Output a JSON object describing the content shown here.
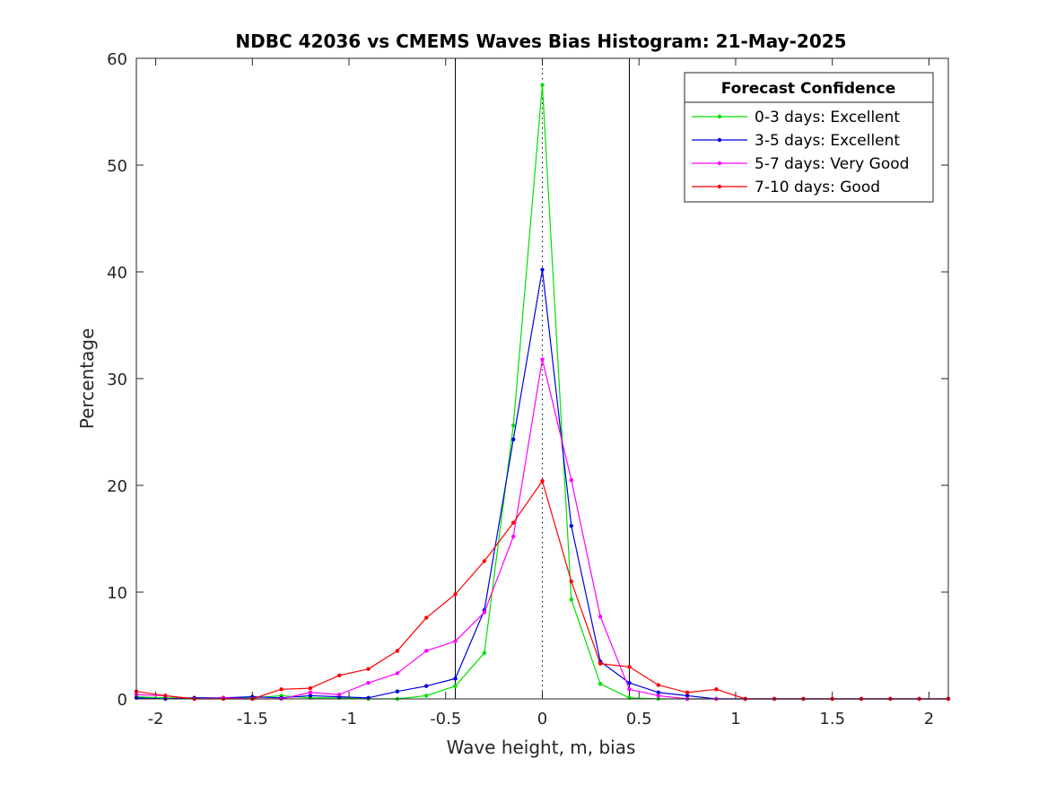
{
  "chart_data": {
    "type": "line",
    "title": "NDBC 42036 vs CMEMS Waves Bias Histogram: 21-May-2025",
    "xlabel": "Wave height, m, bias",
    "ylabel": "Percentage",
    "xlim": [
      -2.1,
      2.1
    ],
    "ylim": [
      0,
      60
    ],
    "xticks": [
      -2,
      -1.5,
      -1,
      -0.5,
      0,
      0.5,
      1,
      1.5,
      2
    ],
    "xtick_labels": [
      "-2",
      "-1.5",
      "-1",
      "-0.5",
      "0",
      "0.5",
      "1",
      "1.5",
      "2"
    ],
    "yticks": [
      0,
      10,
      20,
      30,
      40,
      50,
      60
    ],
    "ytick_labels": [
      "0",
      "10",
      "20",
      "30",
      "40",
      "50",
      "60"
    ],
    "grid": false,
    "reference_lines": {
      "solid": [
        -0.45,
        0.45
      ],
      "dotted": [
        0
      ]
    },
    "legend": {
      "title": "Forecast Confidence",
      "location": "top-right"
    },
    "x": [
      -2.1,
      -1.95,
      -1.8,
      -1.65,
      -1.5,
      -1.35,
      -1.2,
      -1.05,
      -0.9,
      -0.75,
      -0.6,
      -0.45,
      -0.3,
      -0.15,
      0,
      0.15,
      0.3,
      0.45,
      0.6,
      0.75,
      0.9,
      1.05,
      1.2,
      1.35,
      1.5,
      1.65,
      1.8,
      1.95,
      2.1
    ],
    "series": [
      {
        "name": "0-3 days: Excellent",
        "color": "#00e000",
        "values": [
          0.2,
          0.1,
          0.1,
          0.1,
          0.1,
          0.3,
          0.1,
          0.1,
          0,
          0,
          0.3,
          1.2,
          4.3,
          25.6,
          57.5,
          9.3,
          1.4,
          0.1,
          0,
          0,
          0,
          0,
          0,
          0,
          0,
          0,
          0,
          0,
          0
        ]
      },
      {
        "name": "3-5 days: Excellent",
        "color": "#0000e0",
        "values": [
          0.1,
          0,
          0.1,
          0.1,
          0.2,
          0.1,
          0.3,
          0.2,
          0.1,
          0.7,
          1.2,
          1.9,
          8.3,
          24.3,
          40.2,
          16.2,
          3.5,
          1.5,
          0.6,
          0.3,
          0,
          0,
          0,
          0,
          0,
          0,
          0,
          0,
          0
        ]
      },
      {
        "name": "5-7 days: Very Good",
        "color": "#ff00ff",
        "values": [
          0.4,
          0.3,
          0,
          0.1,
          0,
          0,
          0.6,
          0.4,
          1.5,
          2.4,
          4.5,
          5.4,
          8.1,
          15.2,
          31.8,
          20.5,
          7.7,
          0.9,
          0.3,
          0,
          0,
          0,
          0,
          0,
          0,
          0,
          0,
          0,
          0
        ]
      },
      {
        "name": "7-10 days: Good",
        "color": "#ff0000",
        "values": [
          0.7,
          0.3,
          0,
          0,
          0,
          0.9,
          1.0,
          2.2,
          2.8,
          4.5,
          7.6,
          9.8,
          12.9,
          16.5,
          20.4,
          11.0,
          3.3,
          3.0,
          1.3,
          0.6,
          0.9,
          0,
          0,
          0,
          0,
          0,
          0,
          0,
          0
        ]
      }
    ]
  }
}
